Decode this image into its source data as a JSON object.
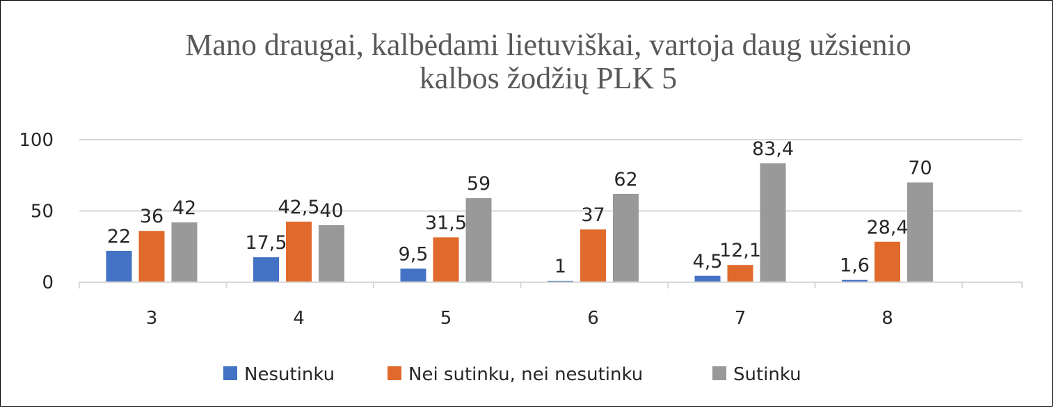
{
  "chart_data": {
    "type": "bar",
    "title_lines": [
      "Mano draugai, kalbėdami lietuviškai, vartoja daug užsienio",
      "kalbos žodžių PLK 5"
    ],
    "categories": [
      "3",
      "4",
      "5",
      "6",
      "7",
      "8"
    ],
    "series": [
      {
        "name": "Nesutinku",
        "color": "#4472C4",
        "values": [
          22,
          17.5,
          9.5,
          1,
          4.5,
          1.6
        ],
        "labels": [
          "22",
          "17,5",
          "9,5",
          "1",
          "4,5",
          "1,6"
        ]
      },
      {
        "name": "Nei sutinku, nei nesutinku",
        "color": "#E06A2B",
        "values": [
          36,
          42.5,
          31.5,
          37,
          12.1,
          28.4
        ],
        "labels": [
          "36",
          "42,5",
          "31,5",
          "37",
          "12,1",
          "28,4"
        ]
      },
      {
        "name": "Sutinku",
        "color": "#999999",
        "values": [
          42,
          40,
          59,
          62,
          83.4,
          70
        ],
        "labels": [
          "42",
          "40",
          "59",
          "62",
          "83,4",
          "70"
        ]
      }
    ],
    "y_ticks": [
      {
        "value": 0,
        "label": "0"
      },
      {
        "value": 50,
        "label": "50"
      },
      {
        "value": 100,
        "label": "100"
      }
    ],
    "ylim": [
      0,
      100
    ],
    "grid": true,
    "legend_position": "bottom"
  }
}
